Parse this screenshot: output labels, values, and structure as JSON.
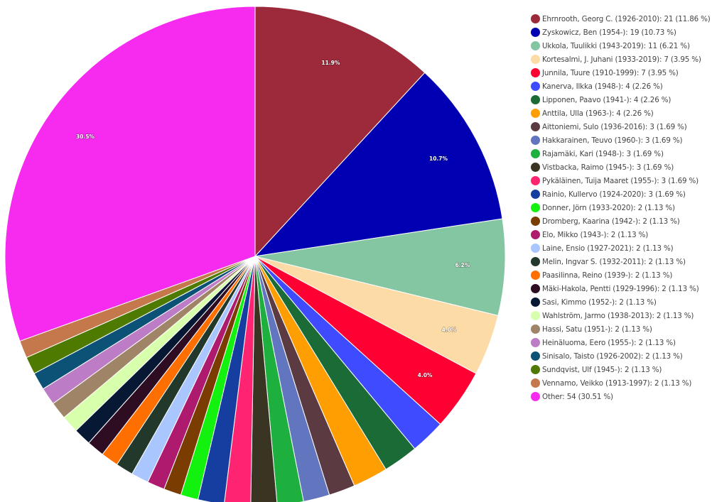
{
  "chart_data": {
    "type": "pie",
    "legend_position": "right",
    "slices": [
      {
        "name": "Ehrnrooth, Georg C. (1926-2010)",
        "value": 21,
        "percent": "11.86 %",
        "label": "11.9%",
        "color": "#9C2A3B"
      },
      {
        "name": "Zyskowicz, Ben (1954-)",
        "value": 19,
        "percent": "10.73 %",
        "label": "10.7%",
        "color": "#0000B2"
      },
      {
        "name": "Ukkola, Tuulikki (1943-2019)",
        "value": 11,
        "percent": "6.21 %",
        "label": "6.2%",
        "color": "#84C5A2"
      },
      {
        "name": "Kortesalmi, J. Juhani (1933-2019)",
        "value": 7,
        "percent": "3.95 %",
        "label": "4.0%",
        "color": "#FCDBA6"
      },
      {
        "name": "Junnila, Tuure (1910-1999)",
        "value": 7,
        "percent": "3.95 %",
        "label": "4.0%",
        "color": "#FF0033"
      },
      {
        "name": "Kanerva, Ilkka (1948-)",
        "value": 4,
        "percent": "2.26 %",
        "label": "",
        "color": "#3F4BFF"
      },
      {
        "name": "Lipponen, Paavo (1941-)",
        "value": 4,
        "percent": "2.26 %",
        "label": "",
        "color": "#1A6B36"
      },
      {
        "name": "Anttila, Ulla (1963-)",
        "value": 4,
        "percent": "2.26 %",
        "label": "",
        "color": "#FF9E00"
      },
      {
        "name": "Aittoniemi, Sulo (1936-2016)",
        "value": 3,
        "percent": "1.69 %",
        "label": "",
        "color": "#5C3A42"
      },
      {
        "name": "Hakkarainen, Teuvo (1960-)",
        "value": 3,
        "percent": "1.69 %",
        "label": "",
        "color": "#6176BF"
      },
      {
        "name": "Rajamäki, Kari (1948-)",
        "value": 3,
        "percent": "1.69 %",
        "label": "",
        "color": "#1DB03E"
      },
      {
        "name": "Vistbacka, Raimo (1945-)",
        "value": 3,
        "percent": "1.69 %",
        "label": "",
        "color": "#3A3522"
      },
      {
        "name": "Pykäläinen, Tuija Maaret (1955-)",
        "value": 3,
        "percent": "1.69 %",
        "label": "",
        "color": "#FF2472"
      },
      {
        "name": "Rainio, Kullervo (1924-2020)",
        "value": 3,
        "percent": "1.69 %",
        "label": "",
        "color": "#163EA0"
      },
      {
        "name": "Donner, Jörn (1933-2020)",
        "value": 2,
        "percent": "1.13 %",
        "label": "",
        "color": "#13F20F"
      },
      {
        "name": "Dromberg, Kaarina (1942-)",
        "value": 2,
        "percent": "1.13 %",
        "label": "",
        "color": "#7A3C00"
      },
      {
        "name": "Elo, Mikko (1943-)",
        "value": 2,
        "percent": "1.13 %",
        "label": "",
        "color": "#AD1A6E"
      },
      {
        "name": "Laine, Ensio (1927-2021)",
        "value": 2,
        "percent": "1.13 %",
        "label": "",
        "color": "#A9C6FF"
      },
      {
        "name": "Melin, Ingvar S. (1932-2011)",
        "value": 2,
        "percent": "1.13 %",
        "label": "",
        "color": "#22382A"
      },
      {
        "name": "Paasilinna, Reino (1939-)",
        "value": 2,
        "percent": "1.13 %",
        "label": "",
        "color": "#FF6F00"
      },
      {
        "name": "Mäki-Hakola, Pentti (1929-1996)",
        "value": 2,
        "percent": "1.13 %",
        "label": "",
        "color": "#2E0C22"
      },
      {
        "name": "Sasi, Kimmo (1952-)",
        "value": 2,
        "percent": "1.13 %",
        "label": "",
        "color": "#061833"
      },
      {
        "name": "Wahlström, Jarmo (1938-2013)",
        "value": 2,
        "percent": "1.13 %",
        "label": "",
        "color": "#D7FFAC"
      },
      {
        "name": "Hassi, Satu (1951-)",
        "value": 2,
        "percent": "1.13 %",
        "label": "",
        "color": "#A08468"
      },
      {
        "name": "Heinäluoma, Eero (1955-)",
        "value": 2,
        "percent": "1.13 %",
        "label": "",
        "color": "#BD7DC6"
      },
      {
        "name": "Sinisalo, Taisto (1926-2002)",
        "value": 2,
        "percent": "1.13 %",
        "label": "",
        "color": "#0C5276"
      },
      {
        "name": "Sundqvist, Ulf (1945-)",
        "value": 2,
        "percent": "1.13 %",
        "label": "",
        "color": "#4E7A00"
      },
      {
        "name": "Vennamo, Veikko (1913-1997)",
        "value": 2,
        "percent": "1.13 %",
        "label": "",
        "color": "#C4784B"
      },
      {
        "name": "Other",
        "value": 54,
        "percent": "30.51 %",
        "label": "30.5%",
        "color": "#F72AF0"
      }
    ]
  }
}
